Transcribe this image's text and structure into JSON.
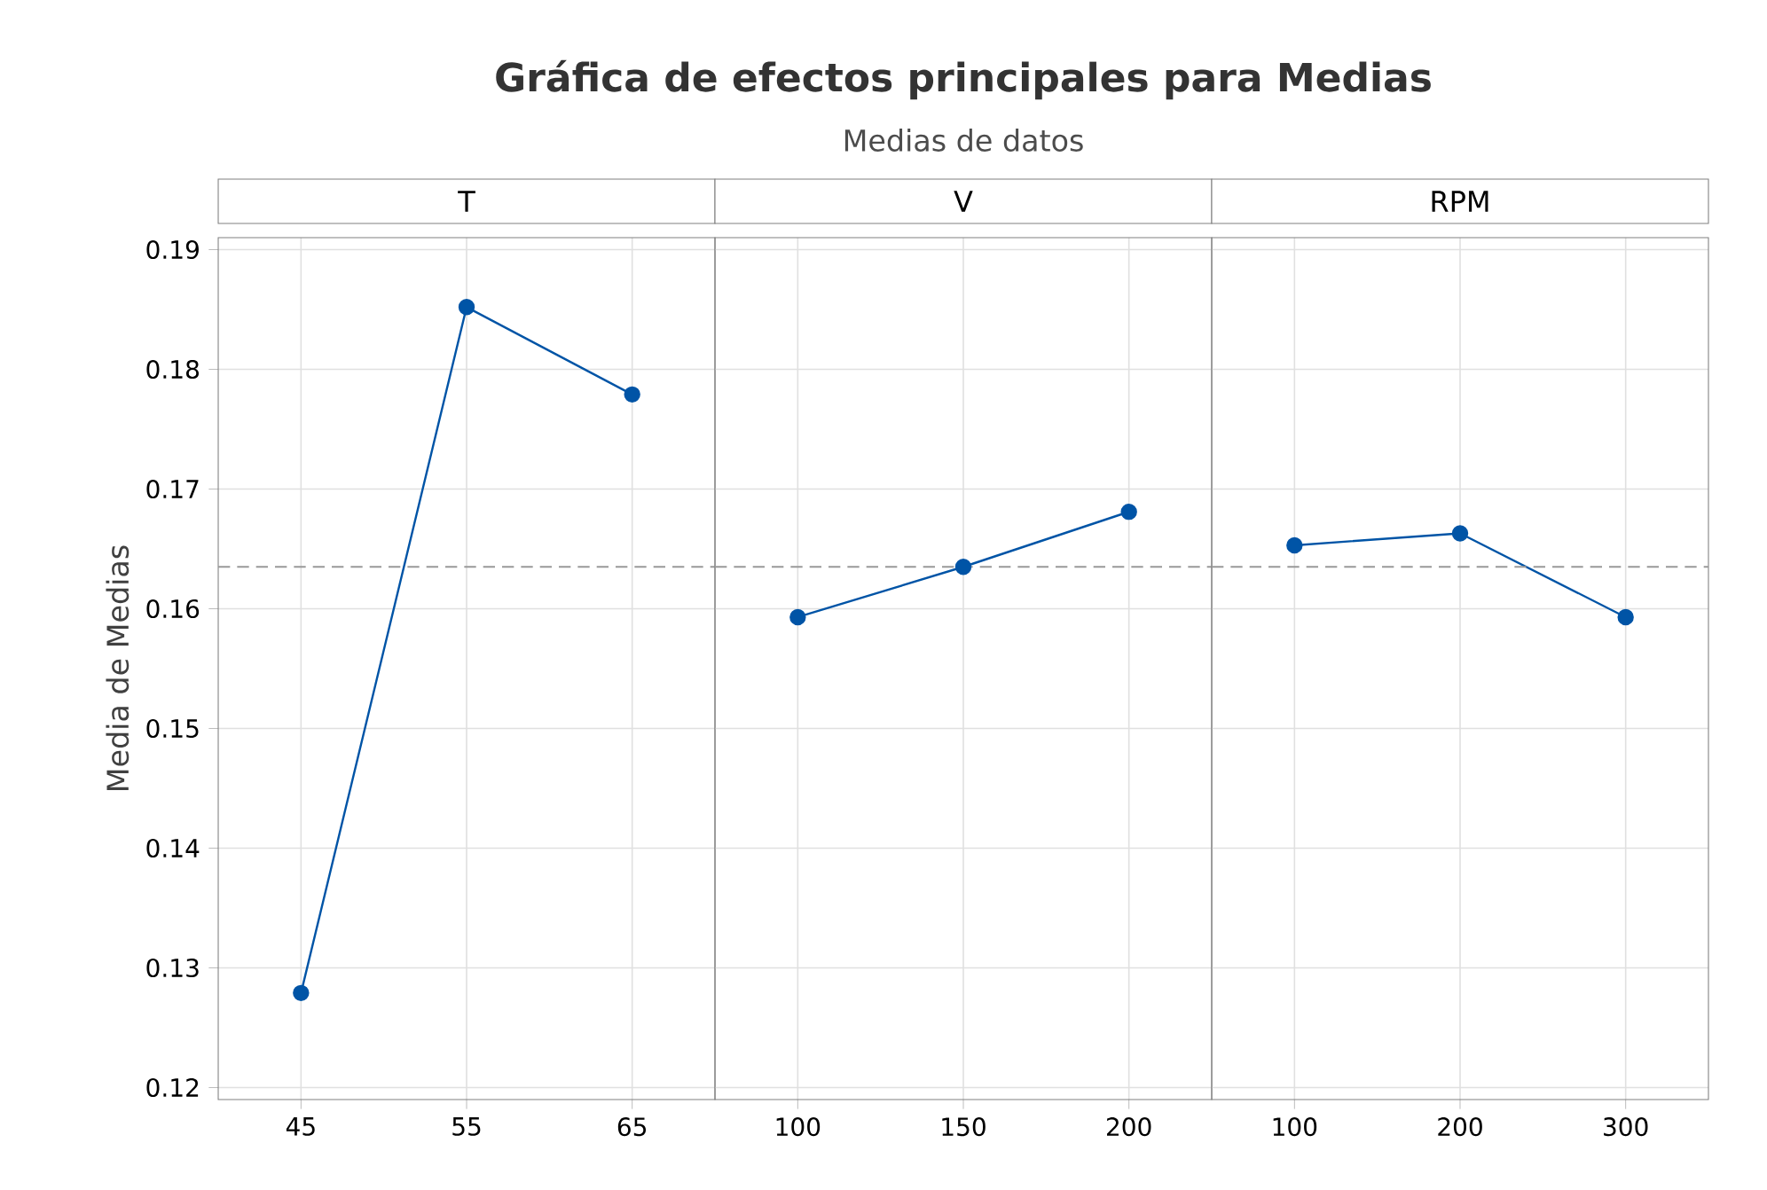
{
  "chart_data": [
    {
      "type": "line",
      "title": "T",
      "categories": [
        "45",
        "55",
        "65"
      ],
      "values": [
        0.1279,
        0.1852,
        0.1779
      ],
      "color": "#0054a6",
      "ylim": [
        0.119,
        0.191
      ],
      "yticks": [
        0.12,
        0.13,
        0.14,
        0.15,
        0.16,
        0.17,
        0.18,
        0.19
      ],
      "ylabel": "Media de Medias",
      "grid": true,
      "marker": "circle",
      "line_style": "solid",
      "ref_lines": [
        {
          "axis": "y",
          "value": 0.1635,
          "line_style": "dashed",
          "color": "#999999"
        }
      ],
      "annotations": [
        "Gráfica de efectos principales para Medias",
        "Medias de datos"
      ]
    },
    {
      "type": "line",
      "title": "V",
      "categories": [
        "100",
        "150",
        "200"
      ],
      "values": [
        0.1593,
        0.1635,
        0.1681
      ],
      "color": "#0054a6",
      "ylim": [
        0.119,
        0.191
      ],
      "yticks": [
        0.12,
        0.13,
        0.14,
        0.15,
        0.16,
        0.17,
        0.18,
        0.19
      ],
      "tick_labels": "x",
      "grid": true,
      "marker": "circle",
      "line_style": "solid",
      "ref_lines": [
        {
          "axis": "y",
          "value": 0.1635,
          "line_style": "dashed",
          "color": "#999999"
        }
      ]
    },
    {
      "type": "line",
      "title": "RPM",
      "categories": [
        "100",
        "200",
        "300"
      ],
      "values": [
        0.1653,
        0.1663,
        0.1593
      ],
      "color": "#0054a6",
      "ylim": [
        0.119,
        0.191
      ],
      "yticks": [
        0.12,
        0.13,
        0.14,
        0.15,
        0.16,
        0.17,
        0.18,
        0.19
      ],
      "tick_labels": "x",
      "grid": true,
      "marker": "circle",
      "line_style": "solid",
      "ref_lines": [
        {
          "axis": "y",
          "value": 0.1635,
          "line_style": "dashed",
          "color": "#999999"
        }
      ]
    }
  ]
}
